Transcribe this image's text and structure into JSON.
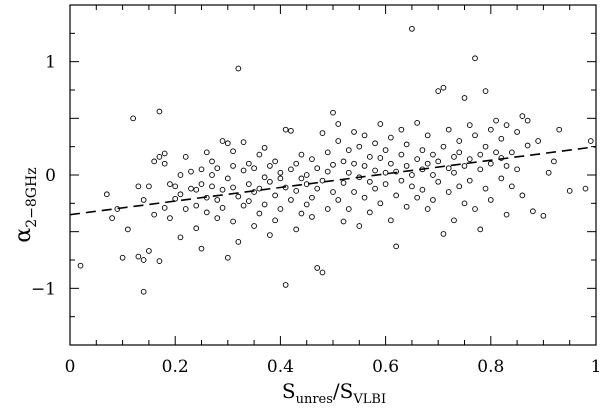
{
  "chart_data": {
    "type": "scatter",
    "title": "",
    "xlabel": {
      "main": "S",
      "sub_num": "unres",
      "sep": "/S",
      "sub_den": "VLBI"
    },
    "ylabel": {
      "main": "α",
      "sub": "2−8GHz"
    },
    "xlim": [
      0,
      1
    ],
    "ylim": [
      -1.5,
      1.5
    ],
    "x_ticks": [
      0,
      0.2,
      0.4,
      0.6,
      0.8,
      1
    ],
    "x_tick_labels": [
      "0",
      "0.2",
      "0.4",
      "0.6",
      "0.8",
      "1"
    ],
    "y_ticks": [
      -1,
      0,
      1
    ],
    "y_tick_labels": [
      "−1",
      "0",
      "1"
    ],
    "grid": false,
    "fit_line": {
      "style": "dashed",
      "x": [
        0,
        1
      ],
      "y": [
        -0.35,
        0.25
      ]
    },
    "points": [
      [
        0.02,
        -0.8
      ],
      [
        0.07,
        -0.17
      ],
      [
        0.08,
        -0.38
      ],
      [
        0.09,
        -0.3
      ],
      [
        0.1,
        -0.73
      ],
      [
        0.11,
        -0.48
      ],
      [
        0.12,
        0.5
      ],
      [
        0.13,
        -0.1
      ],
      [
        0.13,
        -0.72
      ],
      [
        0.14,
        -1.03
      ],
      [
        0.14,
        -0.75
      ],
      [
        0.14,
        -0.22
      ],
      [
        0.15,
        -0.1
      ],
      [
        0.15,
        -0.67
      ],
      [
        0.16,
        0.12
      ],
      [
        0.16,
        -0.35
      ],
      [
        0.17,
        0.56
      ],
      [
        0.17,
        0.16
      ],
      [
        0.17,
        -0.76
      ],
      [
        0.18,
        0.19
      ],
      [
        0.18,
        0.1
      ],
      [
        0.18,
        -0.29
      ],
      [
        0.19,
        -0.38
      ],
      [
        0.19,
        -0.08
      ],
      [
        0.2,
        -0.21
      ],
      [
        0.2,
        -0.1
      ],
      [
        0.21,
        0.0
      ],
      [
        0.21,
        -0.55
      ],
      [
        0.21,
        -0.17
      ],
      [
        0.22,
        0.16
      ],
      [
        0.22,
        -0.3
      ],
      [
        0.23,
        -0.12
      ],
      [
        0.23,
        0.03
      ],
      [
        0.24,
        -0.27
      ],
      [
        0.24,
        -0.13
      ],
      [
        0.24,
        -0.47
      ],
      [
        0.25,
        0.05
      ],
      [
        0.25,
        -0.08
      ],
      [
        0.25,
        -0.65
      ],
      [
        0.26,
        0.2
      ],
      [
        0.26,
        -0.2
      ],
      [
        0.26,
        -0.33
      ],
      [
        0.27,
        0.12
      ],
      [
        0.27,
        -0.1
      ],
      [
        0.27,
        0.0
      ],
      [
        0.28,
        -0.22
      ],
      [
        0.28,
        -0.38
      ],
      [
        0.28,
        0.06
      ],
      [
        0.29,
        0.3
      ],
      [
        0.29,
        -0.13
      ],
      [
        0.29,
        -0.29
      ],
      [
        0.3,
        0.28
      ],
      [
        0.3,
        -0.03
      ],
      [
        0.3,
        -0.73
      ],
      [
        0.31,
        0.21
      ],
      [
        0.31,
        -0.11
      ],
      [
        0.31,
        -0.41
      ],
      [
        0.31,
        0.08
      ],
      [
        0.32,
        0.94
      ],
      [
        0.32,
        -0.19
      ],
      [
        0.32,
        -0.59
      ],
      [
        0.33,
        0.04
      ],
      [
        0.33,
        -0.27
      ],
      [
        0.33,
        0.29
      ],
      [
        0.34,
        -0.08
      ],
      [
        0.34,
        -0.23
      ],
      [
        0.34,
        0.1
      ],
      [
        0.35,
        -0.15
      ],
      [
        0.35,
        -0.45
      ],
      [
        0.35,
        0.06
      ],
      [
        0.36,
        0.18
      ],
      [
        0.36,
        -0.34
      ],
      [
        0.36,
        -0.12
      ],
      [
        0.37,
        -0.02
      ],
      [
        0.37,
        -0.26
      ],
      [
        0.37,
        0.24
      ],
      [
        0.38,
        -0.53
      ],
      [
        0.38,
        -0.06
      ],
      [
        0.38,
        0.08
      ],
      [
        0.39,
        -0.4
      ],
      [
        0.39,
        -0.18
      ],
      [
        0.39,
        0.12
      ],
      [
        0.4,
        -0.03
      ],
      [
        0.4,
        -0.3
      ],
      [
        0.4,
        0.02
      ],
      [
        0.41,
        -0.97
      ],
      [
        0.41,
        0.4
      ],
      [
        0.41,
        -0.11
      ],
      [
        0.42,
        0.39
      ],
      [
        0.42,
        -0.22
      ],
      [
        0.42,
        0.05
      ],
      [
        0.43,
        -0.14
      ],
      [
        0.43,
        -0.48
      ],
      [
        0.43,
        0.1
      ],
      [
        0.44,
        -0.03
      ],
      [
        0.44,
        -0.34
      ],
      [
        0.44,
        0.18
      ],
      [
        0.45,
        -0.08
      ],
      [
        0.45,
        -0.26
      ],
      [
        0.45,
        0.0
      ],
      [
        0.46,
        0.14
      ],
      [
        0.46,
        -0.2
      ],
      [
        0.46,
        -0.37
      ],
      [
        0.47,
        0.06
      ],
      [
        0.47,
        -0.82
      ],
      [
        0.47,
        -0.12
      ],
      [
        0.48,
        0.37
      ],
      [
        0.48,
        -0.86
      ],
      [
        0.48,
        -0.05
      ],
      [
        0.49,
        0.2
      ],
      [
        0.49,
        -0.3
      ],
      [
        0.49,
        0.03
      ],
      [
        0.5,
        0.55
      ],
      [
        0.5,
        -0.15
      ],
      [
        0.5,
        0.09
      ],
      [
        0.51,
        0.45
      ],
      [
        0.51,
        -0.22
      ],
      [
        0.51,
        0.3
      ],
      [
        0.52,
        -0.41
      ],
      [
        0.52,
        0.12
      ],
      [
        0.52,
        -0.07
      ],
      [
        0.53,
        0.22
      ],
      [
        0.53,
        -0.3
      ],
      [
        0.53,
        0.02
      ],
      [
        0.54,
        0.38
      ],
      [
        0.54,
        -0.15
      ],
      [
        0.54,
        0.1
      ],
      [
        0.55,
        -0.45
      ],
      [
        0.55,
        0.25
      ],
      [
        0.55,
        -0.02
      ],
      [
        0.56,
        0.08
      ],
      [
        0.56,
        -0.2
      ],
      [
        0.56,
        0.35
      ],
      [
        0.57,
        -0.06
      ],
      [
        0.57,
        0.16
      ],
      [
        0.57,
        -0.33
      ],
      [
        0.58,
        0.04
      ],
      [
        0.58,
        0.28
      ],
      [
        0.58,
        -0.12
      ],
      [
        0.59,
        0.15
      ],
      [
        0.59,
        -0.25
      ],
      [
        0.59,
        0.45
      ],
      [
        0.6,
        0.02
      ],
      [
        0.6,
        -0.08
      ],
      [
        0.6,
        0.22
      ],
      [
        0.61,
        -0.4
      ],
      [
        0.61,
        0.1
      ],
      [
        0.61,
        0.33
      ],
      [
        0.62,
        -0.63
      ],
      [
        0.62,
        0.03
      ],
      [
        0.62,
        -0.18
      ],
      [
        0.63,
        0.18
      ],
      [
        0.63,
        -0.05
      ],
      [
        0.63,
        0.4
      ],
      [
        0.64,
        0.08
      ],
      [
        0.64,
        -0.28
      ],
      [
        0.64,
        0.27
      ],
      [
        0.65,
        1.29
      ],
      [
        0.65,
        -0.1
      ],
      [
        0.65,
        0.0
      ],
      [
        0.66,
        0.14
      ],
      [
        0.66,
        -0.2
      ],
      [
        0.66,
        0.46
      ],
      [
        0.67,
        0.05
      ],
      [
        0.67,
        -0.13
      ],
      [
        0.67,
        0.22
      ],
      [
        0.68,
        -0.3
      ],
      [
        0.68,
        0.1
      ],
      [
        0.68,
        0.35
      ],
      [
        0.69,
        0.0
      ],
      [
        0.69,
        -0.22
      ],
      [
        0.69,
        0.18
      ],
      [
        0.7,
        0.74
      ],
      [
        0.7,
        0.12
      ],
      [
        0.7,
        -0.06
      ],
      [
        0.71,
        0.77
      ],
      [
        0.71,
        -0.52
      ],
      [
        0.71,
        0.25
      ],
      [
        0.72,
        0.06
      ],
      [
        0.72,
        -0.15
      ],
      [
        0.72,
        0.4
      ],
      [
        0.73,
        0.16
      ],
      [
        0.73,
        -0.4
      ],
      [
        0.73,
        0.02
      ],
      [
        0.74,
        0.3
      ],
      [
        0.74,
        -0.1
      ],
      [
        0.74,
        0.2
      ],
      [
        0.75,
        0.68
      ],
      [
        0.75,
        -0.25
      ],
      [
        0.75,
        0.08
      ],
      [
        0.76,
        0.44
      ],
      [
        0.76,
        -0.05
      ],
      [
        0.76,
        0.14
      ],
      [
        0.77,
        1.03
      ],
      [
        0.77,
        0.35
      ],
      [
        0.77,
        -0.3
      ],
      [
        0.78,
        0.18
      ],
      [
        0.78,
        -0.48
      ],
      [
        0.78,
        0.05
      ],
      [
        0.79,
        0.74
      ],
      [
        0.79,
        0.25
      ],
      [
        0.79,
        -0.12
      ],
      [
        0.8,
        0.4
      ],
      [
        0.8,
        0.1
      ],
      [
        0.8,
        -0.22
      ],
      [
        0.81,
        0.48
      ],
      [
        0.81,
        0.2
      ],
      [
        0.82,
        -0.03
      ],
      [
        0.82,
        0.32
      ],
      [
        0.82,
        0.15
      ],
      [
        0.83,
        -0.35
      ],
      [
        0.83,
        0.44
      ],
      [
        0.83,
        0.08
      ],
      [
        0.84,
        0.2
      ],
      [
        0.84,
        -0.1
      ],
      [
        0.85,
        0.38
      ],
      [
        0.85,
        0.05
      ],
      [
        0.86,
        -0.18
      ],
      [
        0.86,
        0.52
      ],
      [
        0.87,
        0.48
      ],
      [
        0.87,
        0.26
      ],
      [
        0.88,
        -0.32
      ],
      [
        0.89,
        0.3
      ],
      [
        0.9,
        -0.36
      ],
      [
        0.91,
        0.02
      ],
      [
        0.92,
        0.12
      ],
      [
        0.93,
        0.4
      ],
      [
        0.95,
        -0.14
      ],
      [
        0.98,
        -0.12
      ],
      [
        0.99,
        0.3
      ]
    ]
  }
}
